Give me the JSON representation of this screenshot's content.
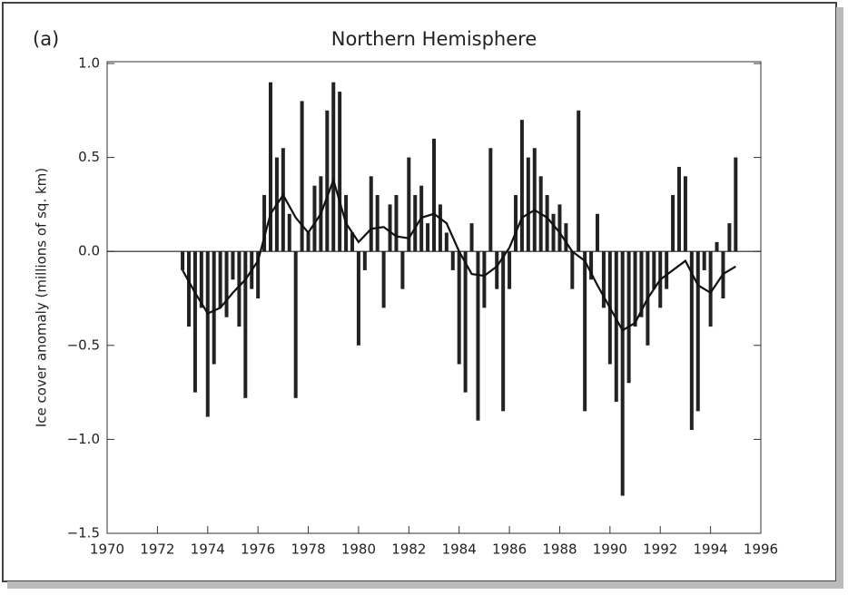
{
  "chart_data": {
    "type": "bar",
    "panel_label": "(a)",
    "title": "Northern Hemisphere",
    "y_label": "Ice cover anomaly (millions of sq. km)",
    "xlim": [
      1970,
      1996
    ],
    "xticks": [
      1970,
      1972,
      1974,
      1976,
      1978,
      1980,
      1982,
      1984,
      1986,
      1988,
      1990,
      1992,
      1994,
      1996
    ],
    "ylim": [
      -1.5,
      1.0
    ],
    "yticks": [
      {
        "value": -1.5,
        "label": "−1.5"
      },
      {
        "value": -1.0,
        "label": "−1.0"
      },
      {
        "value": -0.5,
        "label": "−0.5"
      },
      {
        "value": 0,
        "label": "0.0"
      },
      {
        "value": 0.5,
        "label": "0.5"
      },
      {
        "value": 1.0,
        "label": "1.0"
      }
    ],
    "series": [
      {
        "type": "bar",
        "color": "#222222",
        "x": [
          1973,
          1973.25,
          1973.5,
          1973.75,
          1974,
          1974.25,
          1974.5,
          1974.75,
          1975,
          1975.25,
          1975.5,
          1975.75,
          1976,
          1976.25,
          1976.5,
          1976.75,
          1977,
          1977.25,
          1977.5,
          1977.75,
          1978,
          1978.25,
          1978.5,
          1978.75,
          1979,
          1979.25,
          1979.5,
          1979.75,
          1980,
          1980.25,
          1980.5,
          1980.75,
          1981,
          1981.25,
          1981.5,
          1981.75,
          1982,
          1982.25,
          1982.5,
          1982.75,
          1983,
          1983.25,
          1983.5,
          1983.75,
          1984,
          1984.25,
          1984.5,
          1984.75,
          1985,
          1985.25,
          1985.5,
          1985.75,
          1986,
          1986.25,
          1986.5,
          1986.75,
          1987,
          1987.25,
          1987.5,
          1987.75,
          1988,
          1988.25,
          1988.5,
          1988.75,
          1989,
          1989.25,
          1989.5,
          1989.75,
          1990,
          1990.25,
          1990.5,
          1990.75,
          1991,
          1991.25,
          1991.5,
          1991.75,
          1992,
          1992.25,
          1992.5,
          1992.75,
          1993,
          1993.25,
          1993.5,
          1993.75,
          1994,
          1994.25,
          1994.5,
          1994.75,
          1995
        ],
        "values": [
          -0.1,
          -0.4,
          -0.75,
          -0.3,
          -0.88,
          -0.6,
          -0.3,
          -0.35,
          -0.15,
          -0.4,
          -0.78,
          -0.2,
          -0.25,
          0.3,
          0.9,
          0.5,
          0.55,
          0.2,
          -0.78,
          0.8,
          0.1,
          0.35,
          0.4,
          0.75,
          0.9,
          0.85,
          0.3,
          0.1,
          -0.5,
          -0.1,
          0.4,
          0.3,
          -0.3,
          0.25,
          0.3,
          -0.2,
          0.5,
          0.3,
          0.35,
          0.15,
          0.6,
          0.25,
          0.1,
          -0.1,
          -0.6,
          -0.75,
          0.15,
          -0.9,
          -0.3,
          0.55,
          -0.2,
          -0.85,
          -0.2,
          0.3,
          0.7,
          0.5,
          0.55,
          0.4,
          0.3,
          0.2,
          0.25,
          0.15,
          -0.2,
          0.75,
          -0.85,
          -0.15,
          0.2,
          -0.3,
          -0.6,
          -0.8,
          -1.3,
          -0.7,
          -0.4,
          -0.35,
          -0.5,
          -0.2,
          -0.3,
          -0.2,
          0.3,
          0.45,
          0.4,
          -0.95,
          -0.85,
          -0.1,
          -0.4,
          0.05,
          -0.25,
          0.15,
          0.5
        ]
      },
      {
        "type": "line",
        "color": "#111111",
        "x": [
          1973,
          1973.5,
          1974,
          1974.5,
          1975,
          1975.5,
          1976,
          1976.5,
          1977,
          1977.5,
          1978,
          1978.5,
          1979,
          1979.5,
          1980,
          1980.5,
          1981,
          1981.5,
          1982,
          1982.5,
          1983,
          1983.5,
          1984,
          1984.5,
          1985,
          1985.5,
          1986,
          1986.5,
          1987,
          1987.5,
          1988,
          1988.5,
          1989,
          1989.5,
          1990,
          1990.5,
          1991,
          1991.5,
          1992,
          1992.5,
          1993,
          1993.5,
          1994,
          1994.5,
          1995
        ],
        "values": [
          -0.1,
          -0.22,
          -0.33,
          -0.3,
          -0.22,
          -0.15,
          -0.05,
          0.2,
          0.3,
          0.18,
          0.1,
          0.2,
          0.38,
          0.15,
          0.05,
          0.12,
          0.13,
          0.08,
          0.07,
          0.18,
          0.2,
          0.15,
          0,
          -0.12,
          -0.13,
          -0.08,
          0.02,
          0.18,
          0.22,
          0.18,
          0.1,
          0,
          -0.05,
          -0.18,
          -0.3,
          -0.42,
          -0.38,
          -0.25,
          -0.15,
          -0.1,
          -0.05,
          -0.18,
          -0.22,
          -0.12,
          -0.08
        ]
      }
    ]
  }
}
